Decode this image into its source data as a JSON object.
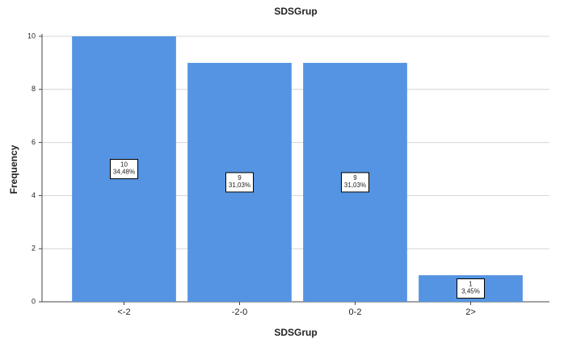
{
  "chart_data": {
    "type": "bar",
    "title": "SDSGrup",
    "x_label": "SDSGrup",
    "y_label": "Frequency",
    "categories": [
      "<-2",
      "-2-0",
      "0-2",
      "2>"
    ],
    "values": [
      10,
      9,
      9,
      1
    ],
    "percents": [
      34.48,
      31.03,
      31.03,
      3.45
    ],
    "percent_labels": [
      "34,48%",
      "31,03%",
      "31,03%",
      "3,45%"
    ],
    "color": "#5594e2",
    "ylim": [
      0,
      10
    ],
    "yticks": [
      0,
      2,
      4,
      6,
      8,
      10
    ],
    "grid": true
  }
}
